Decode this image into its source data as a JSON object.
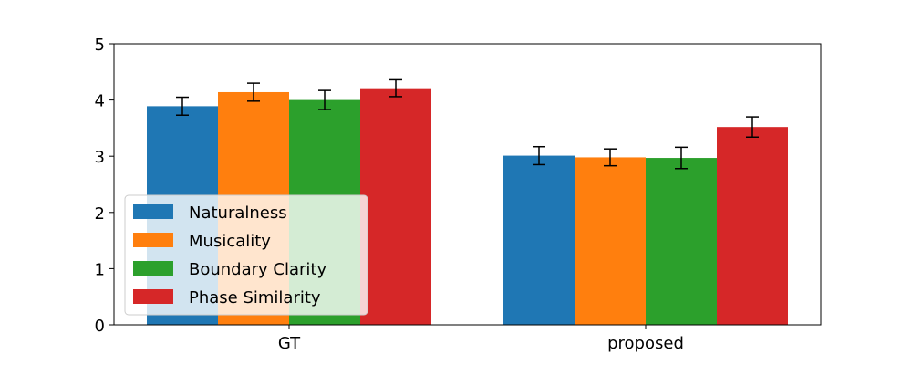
{
  "chart_data": {
    "type": "bar",
    "title": "",
    "xlabel": "",
    "ylabel": "",
    "categories": [
      "GT",
      "proposed"
    ],
    "ylim": [
      0,
      5
    ],
    "yticks": [
      0,
      1,
      2,
      3,
      4,
      5
    ],
    "grid": false,
    "legend_position": "lower-left",
    "series": [
      {
        "name": "Naturalness",
        "color": "#1f77b4",
        "values": [
          3.89,
          3.01
        ],
        "errors": [
          0.16,
          0.16
        ]
      },
      {
        "name": "Musicality",
        "color": "#ff7f0e",
        "values": [
          4.14,
          2.98
        ],
        "errors": [
          0.16,
          0.15
        ]
      },
      {
        "name": "Boundary Clarity",
        "color": "#2ca02c",
        "values": [
          4.0,
          2.97
        ],
        "errors": [
          0.17,
          0.19
        ]
      },
      {
        "name": "Phase Similarity",
        "color": "#d62728",
        "values": [
          4.21,
          3.52
        ],
        "errors": [
          0.15,
          0.18
        ]
      }
    ]
  }
}
